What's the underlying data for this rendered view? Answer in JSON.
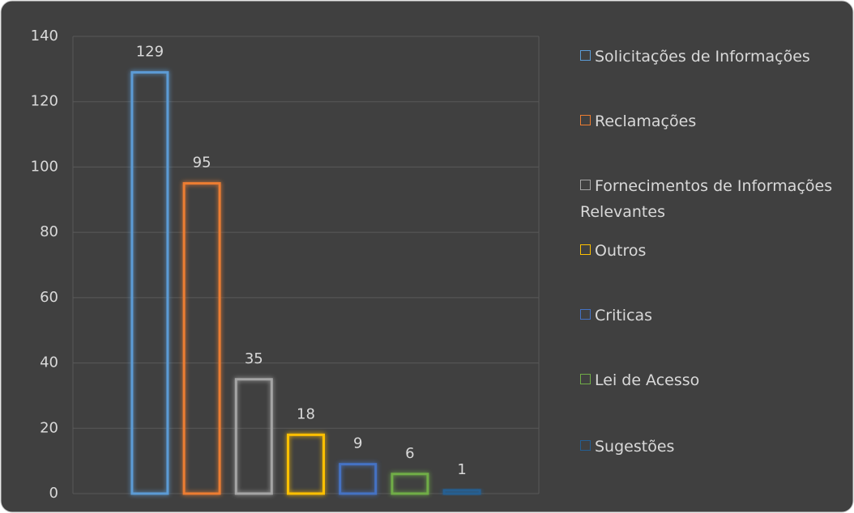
{
  "chart_data": {
    "type": "bar",
    "categories": [
      null
    ],
    "series": [
      {
        "name": "Solicitações de Informações",
        "color": "#5b9bd5",
        "values": [
          129
        ]
      },
      {
        "name": "Reclamações",
        "color": "#ed7d31",
        "values": [
          95
        ]
      },
      {
        "name": "Fornecimentos de Informações Relevantes",
        "color": "#a5a5a5",
        "values": [
          35
        ]
      },
      {
        "name": "Outros",
        "color": "#ffc000",
        "values": [
          18
        ]
      },
      {
        "name": "Criticas",
        "color": "#4472c4",
        "values": [
          9
        ]
      },
      {
        "name": "Lei de Acesso",
        "color": "#70ad47",
        "values": [
          6
        ]
      },
      {
        "name": "Sugestões",
        "color": "#255e91",
        "values": [
          1
        ]
      }
    ],
    "ylim": [
      0,
      140
    ],
    "yticks": [
      0,
      20,
      40,
      60,
      80,
      100,
      120,
      140
    ],
    "grid": true,
    "legend": "right"
  }
}
